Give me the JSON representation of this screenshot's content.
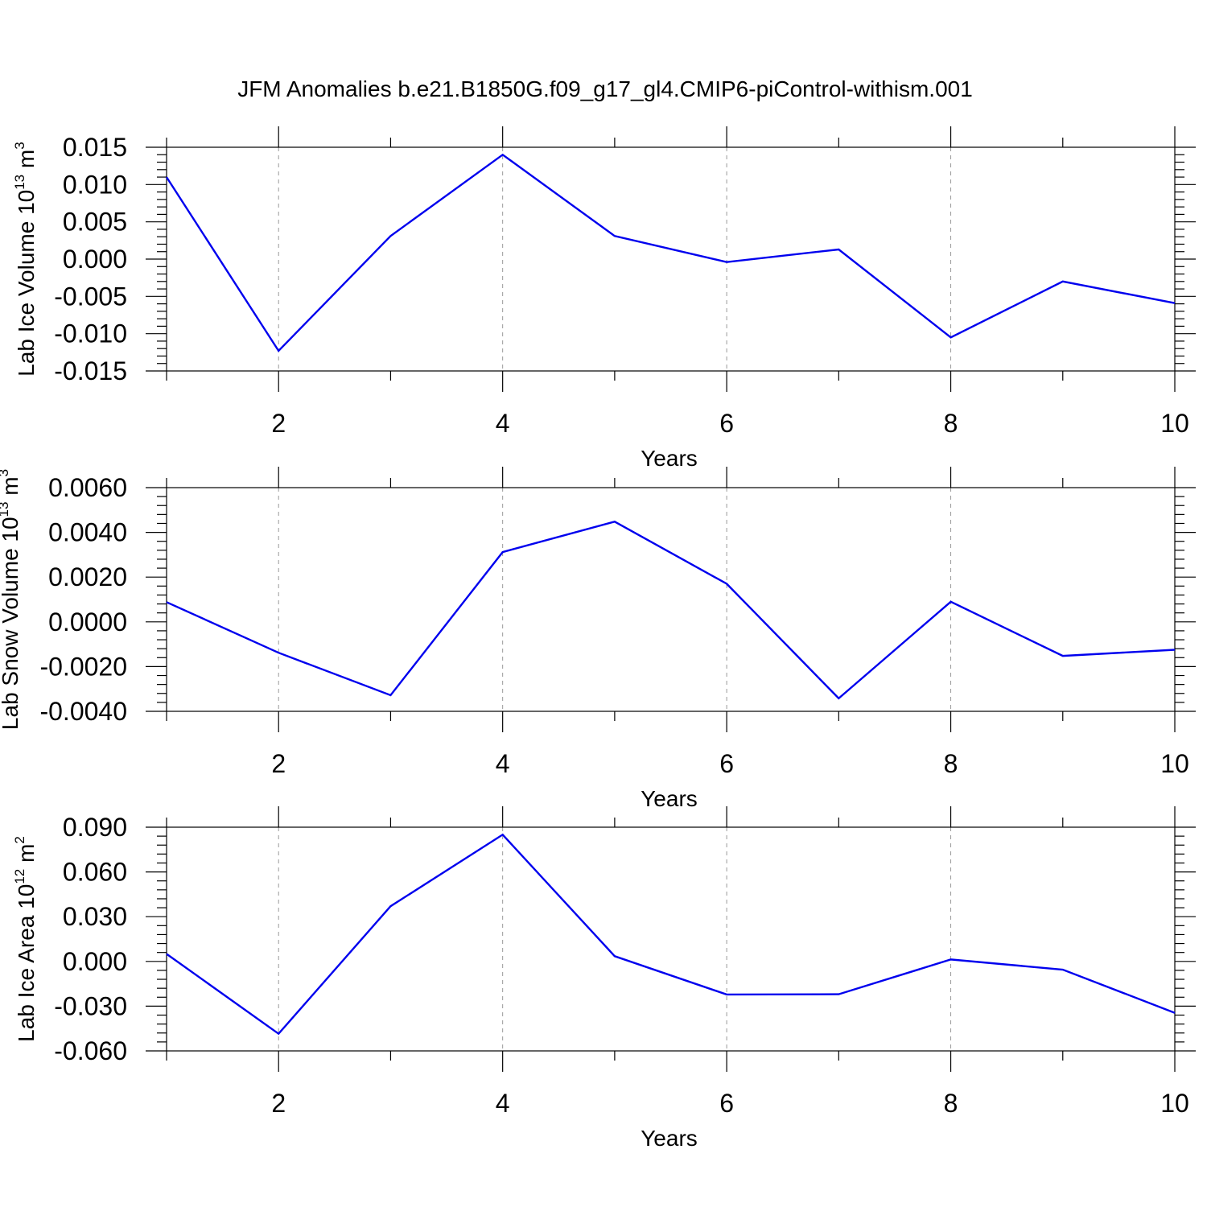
{
  "figure": {
    "title": "JFM Anomalies b.e21.B1850G.f09_g17_gl4.CMIP6-piControl-withism.001"
  },
  "chart_data": [
    {
      "type": "line",
      "ylabel_main": "Lab Ice Volume 10",
      "ylabel_exp": "13",
      "ylabel_unit": " m",
      "ylabel_unit_exp": "3",
      "xlabel": "Years",
      "x": [
        1,
        2,
        3,
        4,
        5,
        6,
        7,
        8,
        9,
        10
      ],
      "xlim": [
        1,
        10
      ],
      "xticks": [
        2,
        4,
        6,
        8,
        10
      ],
      "xtick_labels": [
        "2",
        "4",
        "6",
        "8",
        "10"
      ],
      "ylim": [
        -0.015,
        0.015
      ],
      "yticks": [
        -0.015,
        -0.01,
        -0.005,
        0.0,
        0.005,
        0.01,
        0.015
      ],
      "ytick_labels": [
        "-0.015",
        "-0.010",
        "-0.005",
        "0.000",
        "0.005",
        "0.010",
        "0.015"
      ],
      "series": [
        {
          "values": [
            0.011,
            -0.0123,
            0.0031,
            0.014,
            0.0031,
            -0.0004,
            0.0013,
            -0.0105,
            -0.003,
            -0.0059
          ],
          "color": "#0000ee"
        }
      ],
      "grid_x": "dashed"
    },
    {
      "type": "line",
      "ylabel_main": "Lab Snow Volume 10",
      "ylabel_exp": "13",
      "ylabel_unit": " m",
      "ylabel_unit_exp": "3",
      "xlabel": "Years",
      "x": [
        1,
        2,
        3,
        4,
        5,
        6,
        7,
        8,
        9,
        10
      ],
      "xlim": [
        1,
        10
      ],
      "xticks": [
        2,
        4,
        6,
        8,
        10
      ],
      "xtick_labels": [
        "2",
        "4",
        "6",
        "8",
        "10"
      ],
      "ylim": [
        -0.004,
        0.006
      ],
      "yticks": [
        -0.004,
        -0.002,
        0.0,
        0.002,
        0.004,
        0.006
      ],
      "ytick_labels": [
        "-0.0040",
        "-0.0020",
        "0.0000",
        "0.0020",
        "0.0040",
        "0.0060"
      ],
      "series": [
        {
          "values": [
            0.00088,
            -0.00138,
            -0.00328,
            0.00312,
            0.00448,
            0.0017,
            -0.00342,
            0.0009,
            -0.00152,
            -0.00125
          ],
          "color": "#0000ee"
        }
      ],
      "grid_x": "dashed"
    },
    {
      "type": "line",
      "ylabel_main": "Lab Ice Area 10",
      "ylabel_exp": "12",
      "ylabel_unit": " m",
      "ylabel_unit_exp": "2",
      "xlabel": "Years",
      "x": [
        1,
        2,
        3,
        4,
        5,
        6,
        7,
        8,
        9,
        10
      ],
      "xlim": [
        1,
        10
      ],
      "xticks": [
        2,
        4,
        6,
        8,
        10
      ],
      "xtick_labels": [
        "2",
        "4",
        "6",
        "8",
        "10"
      ],
      "ylim": [
        -0.06,
        0.09
      ],
      "yticks": [
        -0.06,
        -0.03,
        0.0,
        0.03,
        0.06,
        0.09
      ],
      "ytick_labels": [
        "-0.060",
        "-0.030",
        "0.000",
        "0.030",
        "0.060",
        "0.090"
      ],
      "series": [
        {
          "values": [
            0.005,
            -0.0485,
            0.037,
            0.085,
            0.0035,
            -0.0222,
            -0.022,
            0.0013,
            -0.0055,
            -0.0345
          ],
          "color": "#0000ee"
        }
      ],
      "grid_x": "dashed"
    }
  ]
}
